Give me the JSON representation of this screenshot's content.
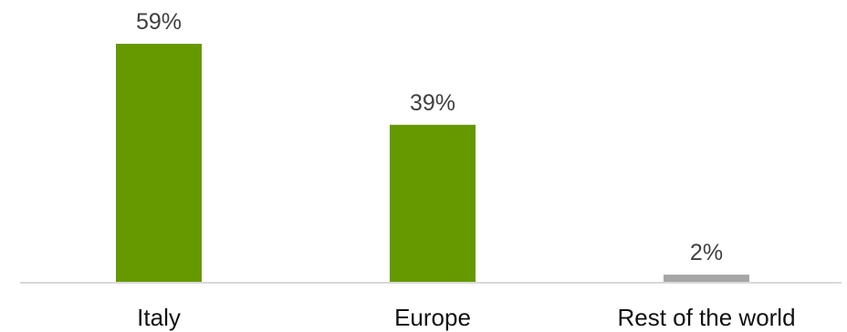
{
  "chart_data": {
    "type": "bar",
    "categories": [
      "Italy",
      "Europe",
      "Rest of the world"
    ],
    "values": [
      59,
      39,
      2
    ],
    "value_labels": [
      "59%",
      "39%",
      "2%"
    ],
    "colors": [
      "#669900",
      "#669900",
      "#A6A6A6"
    ],
    "title": "",
    "xlabel": "",
    "ylabel": "",
    "ylim": [
      0,
      59
    ],
    "grid": false,
    "legend": "none",
    "axis_color": "#D9D9D9"
  }
}
